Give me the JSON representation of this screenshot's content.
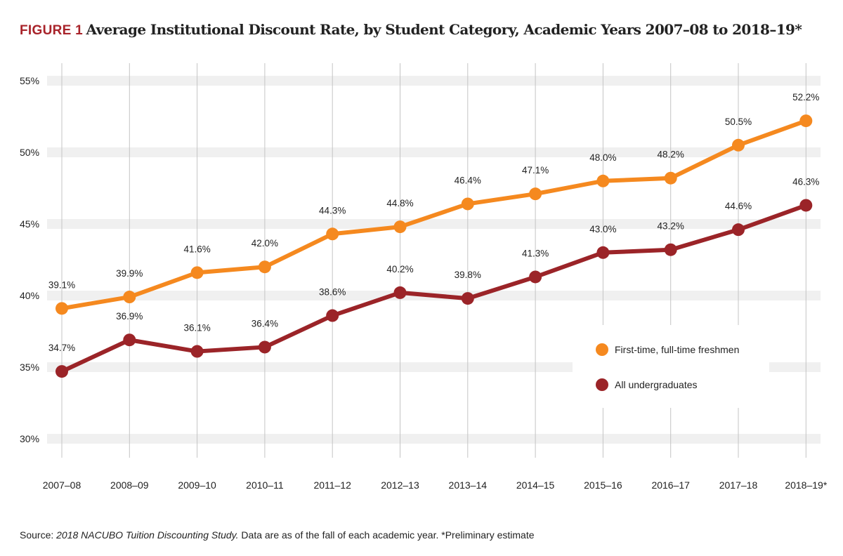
{
  "header": {
    "figure_label": "FIGURE 1",
    "title": "Average Institutional Discount Rate, by Student Category, Academic Years 2007–08 to 2018–19*"
  },
  "source": {
    "prefix": "Source: ",
    "study": "2018 NACUBO Tuition Discounting Study.",
    "note": " Data are as of the fall of each academic year. *Preliminary estimate"
  },
  "chart_data": {
    "type": "line",
    "categories": [
      "2007–08",
      "2008–09",
      "2009–10",
      "2010–11",
      "2011–12",
      "2012–13",
      "2013–14",
      "2014–15",
      "2015–16",
      "2016–17",
      "2017–18",
      "2018–19*"
    ],
    "y_ticks": [
      30,
      35,
      40,
      45,
      50,
      55
    ],
    "y_tick_labels": [
      "30%",
      "35%",
      "40%",
      "45%",
      "50%",
      "55%"
    ],
    "ylim": [
      30,
      55
    ],
    "grid": "horizontal bands and vertical lines",
    "legend_position": "bottom-right",
    "series": [
      {
        "name": "First-time, full-time freshmen",
        "color": "#f5891f",
        "values": [
          39.1,
          39.9,
          41.6,
          42.0,
          44.3,
          44.8,
          46.4,
          47.1,
          48.0,
          48.2,
          50.5,
          52.2
        ],
        "labels": [
          "39.1%",
          "39.9%",
          "41.6%",
          "42.0%",
          "44.3%",
          "44.8%",
          "46.4%",
          "47.1%",
          "48.0%",
          "48.2%",
          "50.5%",
          "52.2%"
        ]
      },
      {
        "name": "All undergraduates",
        "color": "#9b2428",
        "values": [
          34.7,
          36.9,
          36.1,
          36.4,
          38.6,
          40.2,
          39.8,
          41.3,
          43.0,
          43.2,
          44.6,
          46.3
        ],
        "labels": [
          "34.7%",
          "36.9%",
          "36.1%",
          "36.4%",
          "38.6%",
          "40.2%",
          "39.8%",
          "41.3%",
          "43.0%",
          "43.2%",
          "44.6%",
          "46.3%"
        ]
      }
    ]
  }
}
